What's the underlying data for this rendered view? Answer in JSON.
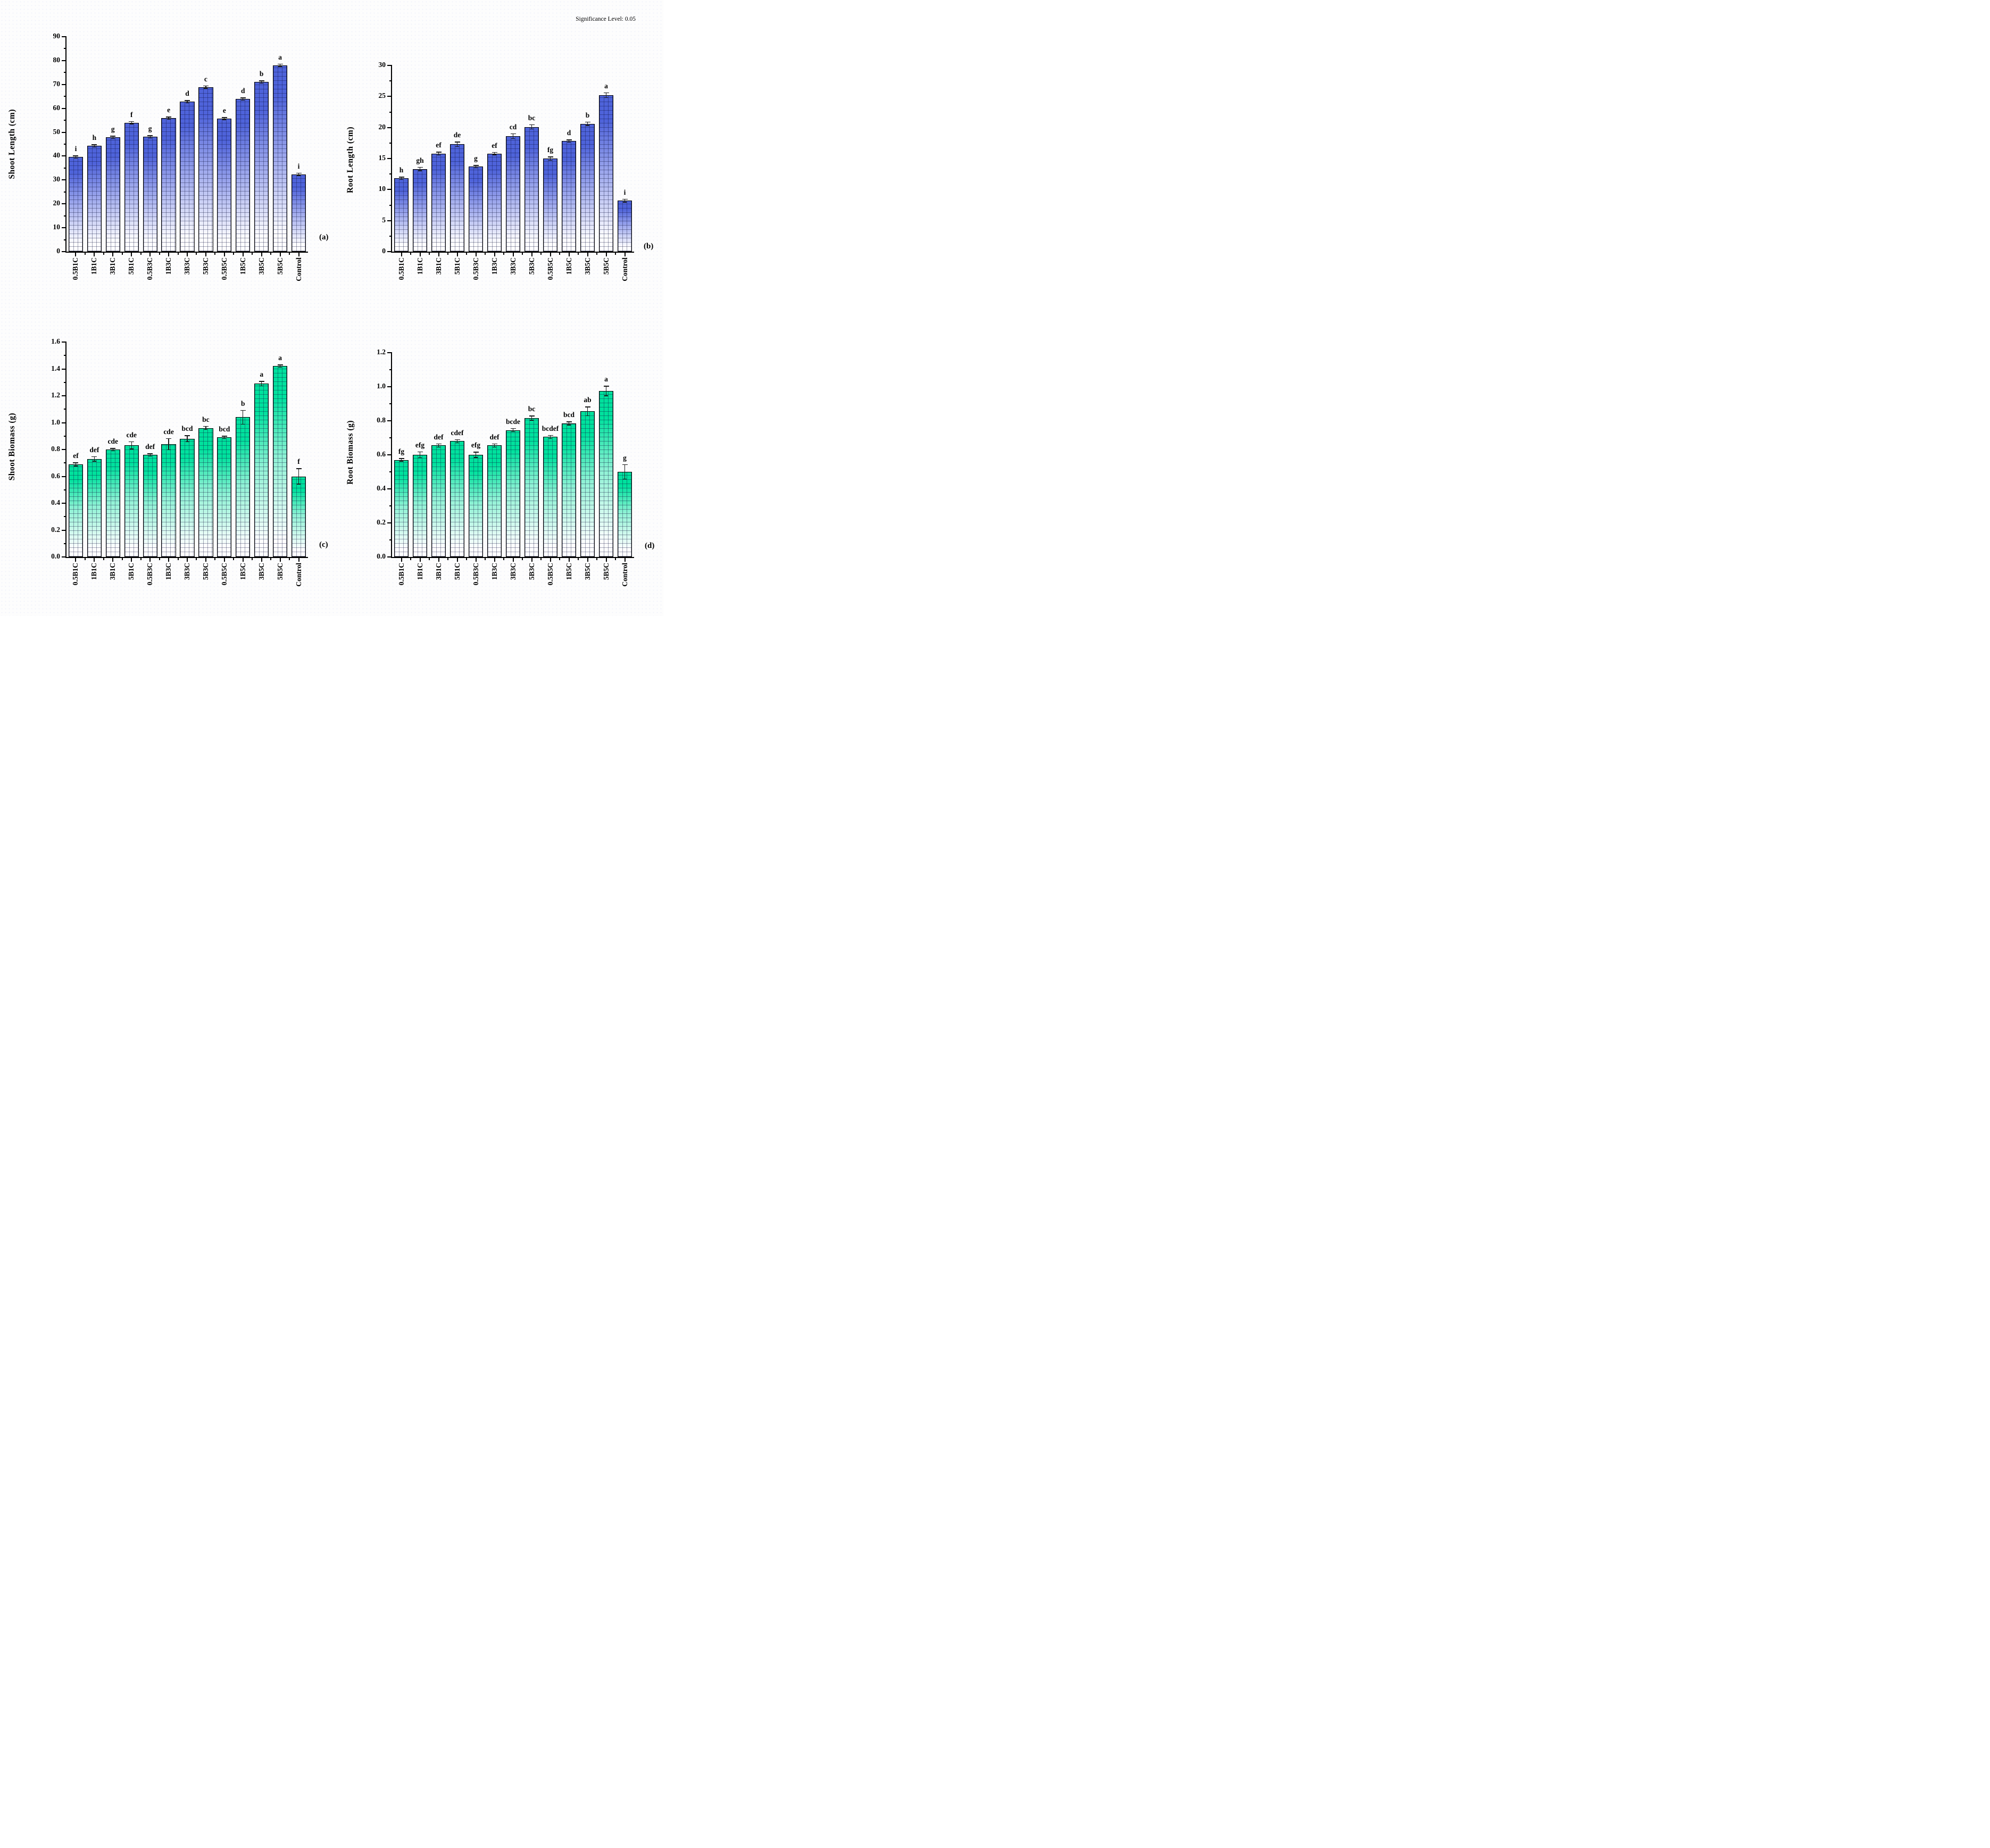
{
  "chart_data": {
    "type": "bar",
    "significance_note": "Significance Level: 0.05",
    "grid": false,
    "legend": "none",
    "categories": [
      "0.5B1C",
      "1B1C",
      "3B1C",
      "5B1C",
      "0.5B3C",
      "1B3C",
      "3B3C",
      "5B3C",
      "0.5B5C",
      "1B5C",
      "3B5C",
      "5B5C",
      "Control"
    ],
    "charts": [
      {
        "id": "a",
        "panel": "(a)",
        "ylabel": "Shoot Length (cm)",
        "ylim": [
          0,
          90
        ],
        "ymajor": 10,
        "yminor": 5,
        "decimals": 0,
        "bar_top_color": "#4e62d9",
        "bar_mid_color": "#9aa5ec",
        "values": [
          39.6,
          44.3,
          47.8,
          54.0,
          48.1,
          55.9,
          62.8,
          68.9,
          55.7,
          63.9,
          71.0,
          78.0,
          32.4
        ],
        "errors": [
          0.7,
          0.5,
          0.4,
          0.5,
          0.4,
          0.4,
          0.5,
          0.4,
          0.4,
          0.4,
          0.5,
          0.6,
          0.5
        ],
        "letters": [
          "i",
          "h",
          "g",
          "f",
          "g",
          "e",
          "d",
          "c",
          "e",
          "d",
          "b",
          "a",
          "i"
        ]
      },
      {
        "id": "b",
        "panel": "(b)",
        "ylabel": "Root Length (cm)",
        "ylim": [
          0,
          30
        ],
        "ymajor": 5,
        "yminor": 2.5,
        "decimals": 0,
        "bar_top_color": "#4e62d9",
        "bar_mid_color": "#9aa5ec",
        "values": [
          11.8,
          13.3,
          15.8,
          17.3,
          13.7,
          15.8,
          18.6,
          20.1,
          15.0,
          17.8,
          20.6,
          25.2,
          8.2
        ],
        "errors": [
          0.2,
          0.35,
          0.3,
          0.45,
          0.25,
          0.2,
          0.45,
          0.4,
          0.35,
          0.2,
          0.35,
          0.45,
          0.3
        ],
        "letters": [
          "h",
          "gh",
          "ef",
          "de",
          "g",
          "ef",
          "cd",
          "bc",
          "fg",
          "d",
          "b",
          "a",
          "i"
        ]
      },
      {
        "id": "c",
        "panel": "(c)",
        "ylabel": "Shoot Biomass (g)",
        "ylim": [
          0,
          1.6
        ],
        "ymajor": 0.2,
        "yminor": 0.1,
        "decimals": 1,
        "bar_top_color": "#00e19d",
        "bar_mid_color": "#8ff2d4",
        "values": [
          0.69,
          0.73,
          0.8,
          0.83,
          0.76,
          0.84,
          0.88,
          0.96,
          0.89,
          1.04,
          1.29,
          1.42,
          0.6
        ],
        "errors": [
          0.015,
          0.02,
          0.012,
          0.03,
          0.01,
          0.045,
          0.025,
          0.015,
          0.012,
          0.055,
          0.02,
          0.012,
          0.06
        ],
        "letters": [
          "ef",
          "def",
          "cde",
          "cde",
          "def",
          "cde",
          "bcd",
          "bc",
          "bcd",
          "b",
          "a",
          "a",
          "f"
        ]
      },
      {
        "id": "d",
        "panel": "(d)",
        "ylabel": "Root Biomass (g)",
        "ylim": [
          0,
          1.2
        ],
        "ymajor": 0.2,
        "yminor": 0.1,
        "decimals": 1,
        "bar_top_color": "#00e19d",
        "bar_mid_color": "#8ff2d4",
        "values": [
          0.57,
          0.6,
          0.655,
          0.68,
          0.6,
          0.655,
          0.745,
          0.815,
          0.705,
          0.785,
          0.855,
          0.975,
          0.5
        ],
        "errors": [
          0.01,
          0.02,
          0.012,
          0.012,
          0.018,
          0.012,
          0.012,
          0.015,
          0.012,
          0.012,
          0.028,
          0.03,
          0.045
        ],
        "letters": [
          "fg",
          "efg",
          "def",
          "cdef",
          "efg",
          "def",
          "bcde",
          "bc",
          "bcdef",
          "bcd",
          "ab",
          "a",
          "g"
        ]
      }
    ]
  }
}
